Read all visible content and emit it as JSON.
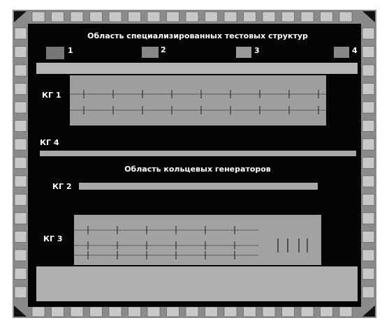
{
  "test_area": {
    "title": "Область специализированных тестовых структур",
    "labels": [
      "1",
      "2",
      "3",
      "4"
    ]
  },
  "ring_area": {
    "title": "Область кольцевых генераторов"
  },
  "generators": [
    {
      "label": "КГ 1"
    },
    {
      "label": "КГ 4"
    },
    {
      "label": "КГ 2"
    },
    {
      "label": "КГ 3"
    }
  ]
}
